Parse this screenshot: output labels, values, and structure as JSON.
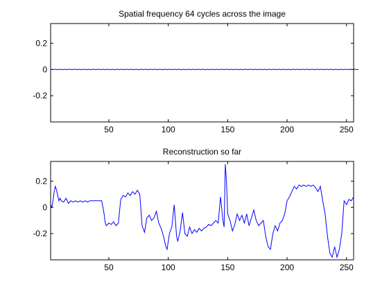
{
  "chart_data": [
    {
      "type": "line",
      "title": "Spatial frequency 64 cycles across the image",
      "xlabel": "",
      "ylabel": "",
      "xlim": [
        1,
        256
      ],
      "ylim": [
        -0.4,
        0.35
      ],
      "x_ticks": [
        50,
        100,
        150,
        200,
        250
      ],
      "y_ticks": [
        0.2,
        0,
        -0.2
      ],
      "y_tick_labels": [
        "0.2",
        "0",
        "-0.2"
      ],
      "grid": false,
      "line_color": "#0000ff",
      "series": [
        {
          "x_start": 1,
          "x_step": 1,
          "values": [
            0.002,
            0.0,
            -0.002,
            0.0,
            0.002,
            0.0,
            -0.002,
            0.0,
            0.002,
            0.0,
            -0.002,
            0.0,
            0.002,
            0.0,
            -0.002,
            0.0,
            0.002,
            0.0,
            -0.002,
            0.0,
            0.002,
            0.0,
            -0.002,
            0.0,
            0.002,
            0.0,
            -0.002,
            0.0,
            0.002,
            0.0,
            -0.002,
            0.0,
            0.002,
            0.0,
            -0.002,
            0.0,
            0.002,
            0.0,
            -0.002,
            0.0,
            0.002,
            0.0,
            -0.002,
            0.0,
            0.002,
            0.0,
            -0.002,
            0.0,
            0.002,
            0.0,
            -0.002,
            0.0,
            0.002,
            0.0,
            -0.002,
            0.0,
            0.002,
            0.0,
            -0.002,
            0.0,
            0.002,
            0.0,
            -0.002,
            0.0,
            0.002,
            0.0,
            -0.002,
            0.0,
            0.002,
            0.0,
            -0.002,
            0.0,
            0.002,
            0.0,
            -0.002,
            0.0,
            0.002,
            0.0,
            -0.002,
            0.0,
            0.002,
            0.0,
            -0.002,
            0.0,
            0.002,
            0.0,
            -0.002,
            0.0,
            0.002,
            0.0,
            -0.002,
            0.0,
            0.002,
            0.0,
            -0.002,
            0.0,
            0.002,
            0.0,
            -0.002,
            0.0,
            0.002,
            0.0,
            -0.002,
            0.0,
            0.002,
            0.0,
            -0.002,
            0.0,
            0.002,
            0.0,
            -0.002,
            0.0,
            0.002,
            0.0,
            -0.002,
            0.0,
            0.002,
            0.0,
            -0.002,
            0.0,
            0.002,
            0.0,
            -0.002,
            0.0,
            0.002,
            0.0,
            -0.002,
            0.0,
            0.002,
            0.0,
            -0.002,
            0.0,
            0.002,
            0.0,
            -0.002,
            0.0,
            0.002,
            0.0,
            -0.002,
            0.0,
            0.002,
            0.0,
            -0.002,
            0.0,
            0.002,
            0.0,
            -0.002,
            0.0,
            0.002,
            0.0,
            -0.002,
            0.0,
            0.002,
            0.0,
            -0.002,
            0.0,
            0.002,
            0.0,
            -0.002,
            0.0,
            0.002,
            0.0,
            -0.002,
            0.0,
            0.002,
            0.0,
            -0.002,
            0.0,
            0.002,
            0.0,
            -0.002,
            0.0,
            0.002,
            0.0,
            -0.002,
            0.0,
            0.002,
            0.0,
            -0.002,
            0.0,
            0.002,
            0.0,
            -0.002,
            0.0,
            0.002,
            0.0,
            -0.002,
            0.0,
            0.002,
            0.0,
            -0.002,
            0.0,
            0.002,
            0.0,
            -0.002,
            0.0,
            0.002,
            0.0,
            -0.002,
            0.0,
            0.002,
            0.0,
            -0.002,
            0.0,
            0.002,
            0.0,
            -0.002,
            0.0,
            0.002,
            0.0,
            -0.002,
            0.0,
            0.002,
            0.0,
            -0.002,
            0.0,
            0.002,
            0.0,
            -0.002,
            0.0,
            0.002,
            0.0,
            -0.002,
            0.0,
            0.002,
            0.0,
            -0.002,
            0.0,
            0.002,
            0.0,
            -0.002,
            0.0,
            0.002,
            0.0,
            -0.002,
            0.0,
            0.002,
            0.0,
            -0.002,
            0.0,
            0.002,
            0.0,
            -0.002,
            0.0,
            0.002,
            0.0,
            -0.002,
            0.0,
            0.002,
            0.0,
            -0.002,
            0.0,
            0.002,
            0.0,
            -0.002,
            0.0,
            0.002,
            0.0,
            -0.002,
            0.0
          ]
        }
      ]
    },
    {
      "type": "line",
      "title": "Reconstruction so far",
      "xlabel": "",
      "ylabel": "",
      "xlim": [
        1,
        256
      ],
      "ylim": [
        -0.4,
        0.35
      ],
      "x_ticks": [
        50,
        100,
        150,
        200,
        250
      ],
      "y_ticks": [
        0.2,
        0,
        -0.2
      ],
      "y_tick_labels": [
        "0.2",
        "0",
        "-0.2"
      ],
      "grid": false,
      "line_color": "#0000ff",
      "series": [
        {
          "x": [
            1,
            2,
            3,
            4,
            5,
            6,
            7,
            8,
            9,
            10,
            12,
            14,
            16,
            18,
            20,
            22,
            24,
            26,
            28,
            30,
            32,
            34,
            36,
            38,
            40,
            42,
            44,
            46,
            47,
            48,
            50,
            52,
            54,
            56,
            58,
            60,
            62,
            64,
            66,
            68,
            70,
            72,
            74,
            76,
            78,
            80,
            82,
            84,
            86,
            88,
            90,
            92,
            94,
            96,
            98,
            99,
            101,
            103,
            105,
            107,
            108,
            110,
            112,
            114,
            116,
            118,
            120,
            122,
            124,
            126,
            128,
            130,
            132,
            134,
            136,
            138,
            140,
            142,
            144,
            146,
            147,
            148,
            149,
            150,
            152,
            154,
            156,
            158,
            160,
            162,
            164,
            166,
            168,
            170,
            172,
            174,
            176,
            178,
            180,
            182,
            184,
            186,
            188,
            190,
            192,
            194,
            196,
            198,
            200,
            202,
            204,
            206,
            208,
            210,
            212,
            214,
            216,
            218,
            220,
            222,
            224,
            226,
            228,
            230,
            232,
            234,
            236,
            238,
            240,
            242,
            244,
            246,
            248,
            250,
            252,
            254,
            256
          ],
          "y": [
            0.02,
            0.0,
            0.05,
            0.12,
            0.16,
            0.13,
            0.09,
            0.05,
            0.07,
            0.05,
            0.04,
            0.07,
            0.03,
            0.05,
            0.04,
            0.05,
            0.04,
            0.05,
            0.04,
            0.05,
            0.04,
            0.05,
            0.05,
            0.05,
            0.05,
            0.05,
            0.05,
            -0.05,
            -0.12,
            -0.14,
            -0.12,
            -0.13,
            -0.11,
            -0.14,
            -0.12,
            0.06,
            0.09,
            0.08,
            0.11,
            0.09,
            0.12,
            0.1,
            0.13,
            0.1,
            -0.14,
            -0.19,
            -0.08,
            -0.06,
            -0.1,
            -0.08,
            -0.03,
            -0.12,
            -0.16,
            -0.22,
            -0.3,
            -0.32,
            -0.2,
            -0.15,
            0.02,
            -0.22,
            -0.26,
            -0.18,
            -0.04,
            -0.2,
            -0.22,
            -0.15,
            -0.2,
            -0.17,
            -0.19,
            -0.16,
            -0.18,
            -0.16,
            -0.15,
            -0.13,
            -0.14,
            -0.12,
            -0.1,
            -0.12,
            0.08,
            -0.1,
            -0.15,
            0.33,
            0.2,
            -0.05,
            -0.1,
            -0.18,
            -0.13,
            -0.05,
            -0.1,
            -0.06,
            -0.12,
            -0.05,
            -0.14,
            -0.08,
            -0.02,
            -0.1,
            -0.14,
            -0.12,
            -0.1,
            -0.22,
            -0.3,
            -0.32,
            -0.2,
            -0.14,
            -0.18,
            -0.12,
            -0.1,
            -0.05,
            0.05,
            0.08,
            0.12,
            0.16,
            0.14,
            0.17,
            0.16,
            0.17,
            0.16,
            0.17,
            0.16,
            0.17,
            0.15,
            0.12,
            0.16,
            0.05,
            -0.05,
            -0.22,
            -0.35,
            -0.38,
            -0.3,
            -0.38,
            -0.32,
            -0.2,
            0.05,
            0.02,
            0.06,
            0.05,
            0.08
          ]
        }
      ]
    }
  ]
}
